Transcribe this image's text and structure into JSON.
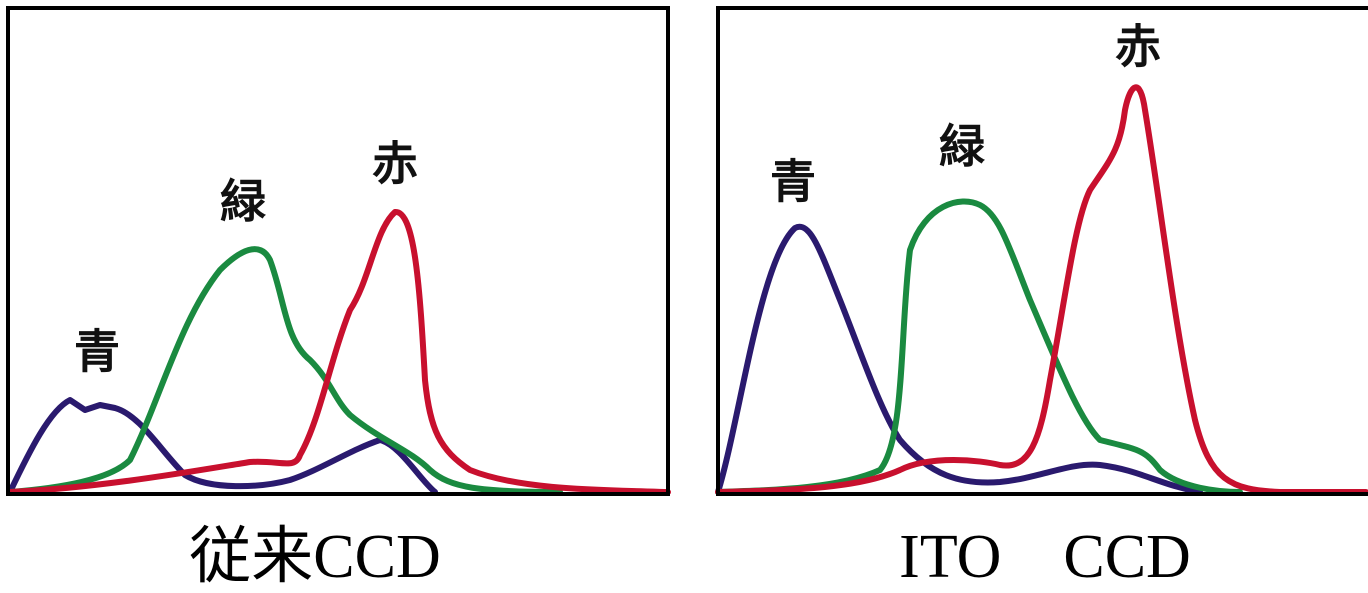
{
  "panels": [
    {
      "labels": {
        "blue": "青",
        "green": "緑",
        "red": "赤"
      },
      "caption": "従来CCD"
    },
    {
      "labels": {
        "blue": "青",
        "green": "緑",
        "red": "赤"
      },
      "caption": "ITO　CCD"
    }
  ]
}
